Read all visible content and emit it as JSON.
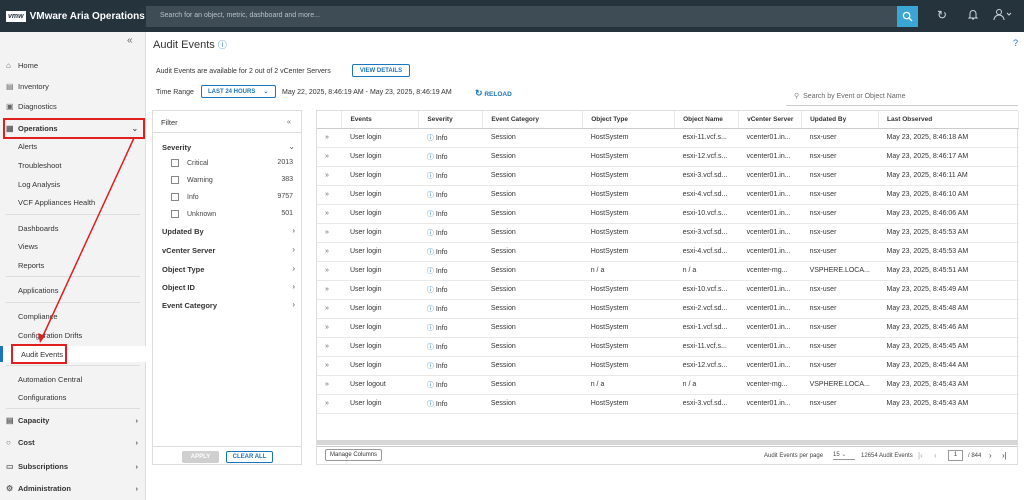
{
  "app": {
    "vmw": "vmw",
    "name": "VMware Aria Operations"
  },
  "search": {
    "placeholder": "Search for an object, metric, dashboard and more..."
  },
  "sidebar": {
    "home": "Home",
    "inventory": "Inventory",
    "diagnostics": "Diagnostics",
    "operations": "Operations",
    "alerts": "Alerts",
    "troubleshoot": "Troubleshoot",
    "log_analysis": "Log Analysis",
    "vcf_health": "VCF Appliances Health",
    "dashboards": "Dashboards",
    "views": "Views",
    "reports": "Reports",
    "applications": "Applications",
    "compliance": "Compliance",
    "config_drifts": "Configuration Drifts",
    "audit_events": "Audit Events",
    "automation_central": "Automation Central",
    "configurations": "Configurations",
    "capacity": "Capacity",
    "cost": "Cost",
    "subscriptions": "Subscriptions",
    "administration": "Administration"
  },
  "page": {
    "title": "Audit Events",
    "help": "?",
    "availability": "Audit Events are available for 2 out of 2 vCenter Servers",
    "view_details": "VIEW DETAILS",
    "time_range_label": "Time Range",
    "time_range_value": "LAST 24 HOURS",
    "time_range_text": "May 22, 2025, 8:46:19 AM - May 23, 2025, 8:46:19 AM",
    "reload": "RELOAD",
    "event_search_placeholder": "Search by Event or Object Name"
  },
  "filter": {
    "title": "Filter",
    "severity": "Severity",
    "options": [
      {
        "label": "Critical",
        "count": "2013"
      },
      {
        "label": "Warning",
        "count": "383"
      },
      {
        "label": "Info",
        "count": "9757"
      },
      {
        "label": "Unknown",
        "count": "501"
      }
    ],
    "updated_by": "Updated By",
    "vcenter_server": "vCenter Server",
    "object_type": "Object Type",
    "object_id": "Object ID",
    "event_category": "Event Category",
    "apply": "APPLY",
    "clear_all": "CLEAR ALL"
  },
  "table": {
    "columns": [
      "Events",
      "Severity",
      "Event Category",
      "Object Type",
      "Object Name",
      "vCenter Server",
      "Updated By",
      "Last Observed"
    ],
    "rows": [
      [
        "User login",
        "Info",
        "Session",
        "HostSystem",
        "esxi-11.vcf.s...",
        "vcenter01.in...",
        "nsx-user",
        "May 23, 2025, 8:46:18 AM"
      ],
      [
        "User login",
        "Info",
        "Session",
        "HostSystem",
        "esxi-12.vcf.s...",
        "vcenter01.in...",
        "nsx-user",
        "May 23, 2025, 8:46:17 AM"
      ],
      [
        "User login",
        "Info",
        "Session",
        "HostSystem",
        "esxi-3.vcf.sd...",
        "vcenter01.in...",
        "nsx-user",
        "May 23, 2025, 8:46:11 AM"
      ],
      [
        "User login",
        "Info",
        "Session",
        "HostSystem",
        "esxi-4.vcf.sd...",
        "vcenter01.in...",
        "nsx-user",
        "May 23, 2025, 8:46:10 AM"
      ],
      [
        "User login",
        "Info",
        "Session",
        "HostSystem",
        "esxi-10.vcf.s...",
        "vcenter01.in...",
        "nsx-user",
        "May 23, 2025, 8:46:06 AM"
      ],
      [
        "User login",
        "Info",
        "Session",
        "HostSystem",
        "esxi-3.vcf.sd...",
        "vcenter01.in...",
        "nsx-user",
        "May 23, 2025, 8:45:53 AM"
      ],
      [
        "User login",
        "Info",
        "Session",
        "HostSystem",
        "esxi-4.vcf.sd...",
        "vcenter01.in...",
        "nsx-user",
        "May 23, 2025, 8:45:53 AM"
      ],
      [
        "User login",
        "Info",
        "Session",
        "n / a",
        "n / a",
        "vcenter-mg...",
        "VSPHERE.LOCA...",
        "May 23, 2025, 8:45:51 AM"
      ],
      [
        "User login",
        "Info",
        "Session",
        "HostSystem",
        "esxi-10.vcf.s...",
        "vcenter01.in...",
        "nsx-user",
        "May 23, 2025, 8:45:49 AM"
      ],
      [
        "User login",
        "Info",
        "Session",
        "HostSystem",
        "esxi-2.vcf.sd...",
        "vcenter01.in...",
        "nsx-user",
        "May 23, 2025, 8:45:48 AM"
      ],
      [
        "User login",
        "Info",
        "Session",
        "HostSystem",
        "esxi-1.vcf.sd...",
        "vcenter01.in...",
        "nsx-user",
        "May 23, 2025, 8:45:46 AM"
      ],
      [
        "User login",
        "Info",
        "Session",
        "HostSystem",
        "esxi-11.vcf.s...",
        "vcenter01.in...",
        "nsx-user",
        "May 23, 2025, 8:45:45 AM"
      ],
      [
        "User login",
        "Info",
        "Session",
        "HostSystem",
        "esxi-12.vcf.s...",
        "vcenter01.in...",
        "nsx-user",
        "May 23, 2025, 8:45:44 AM"
      ],
      [
        "User logout",
        "Info",
        "Session",
        "n / a",
        "n / a",
        "vcenter-mg...",
        "VSPHERE.LOCA...",
        "May 23, 2025, 8:45:43 AM"
      ],
      [
        "User login",
        "Info",
        "Session",
        "HostSystem",
        "esxi-3.vcf.sd...",
        "vcenter01.in...",
        "nsx-user",
        "May 23, 2025, 8:45:43 AM"
      ]
    ],
    "manage_columns": "Manage Columns",
    "per_page_label": "Audit Events per page",
    "per_page_value": "15",
    "total": "12654 Audit Events",
    "page_current": "1",
    "page_total": "/ 844"
  },
  "colors": {
    "accent": "#1b75bb",
    "topbar": "#25333d",
    "highlight": "#e02020"
  }
}
